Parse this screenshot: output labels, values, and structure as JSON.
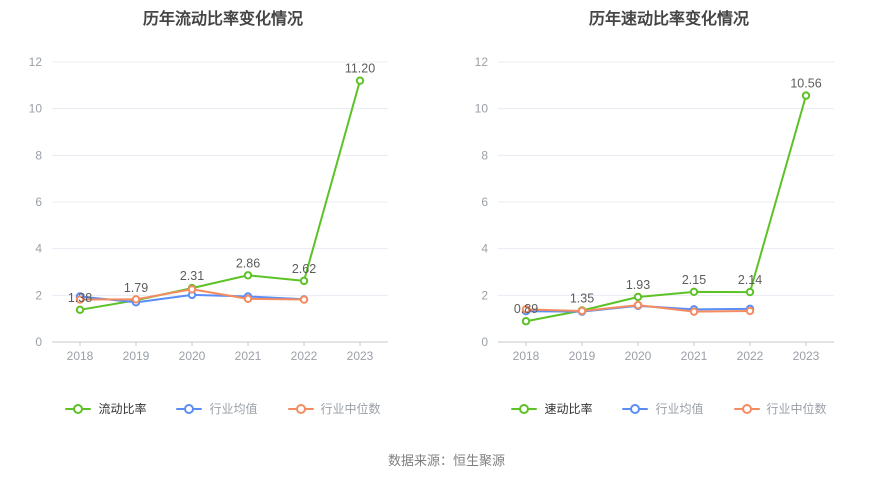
{
  "source_text": "数据来源：恒生聚源",
  "colors": {
    "grid": "#e8ecf2",
    "axis_line": "#c4c8cc",
    "axis_text": "#9aa0a6",
    "value_label": "#5c5c5c",
    "title_text": "#454545",
    "legend_active_text": "#333333",
    "legend_muted_text": "#9aa0a6",
    "background": "#ffffff"
  },
  "chart_data": [
    {
      "type": "line",
      "title": "历年流动比率变化情况",
      "categories": [
        "2018",
        "2019",
        "2020",
        "2021",
        "2022",
        "2023"
      ],
      "ylim": [
        0,
        12
      ],
      "yticks": [
        0,
        2,
        4,
        6,
        8,
        10,
        12
      ],
      "grid": true,
      "legend_position": "bottom",
      "series": [
        {
          "name": "流动比率",
          "color": "#5cc226",
          "values": [
            1.38,
            1.79,
            2.31,
            2.86,
            2.62,
            11.2
          ],
          "point_labels": [
            "1.38",
            "1.79",
            "2.31",
            "2.86",
            "2.62",
            "11.20"
          ]
        },
        {
          "name": "行业均值",
          "color": "#5b8df6",
          "values": [
            1.95,
            1.7,
            2.02,
            1.95,
            1.83,
            null
          ]
        },
        {
          "name": "行业中位数",
          "color": "#f58b60",
          "values": [
            1.82,
            1.83,
            2.26,
            1.85,
            1.82,
            null
          ]
        }
      ]
    },
    {
      "type": "line",
      "title": "历年速动比率变化情况",
      "categories": [
        "2018",
        "2019",
        "2020",
        "2021",
        "2022",
        "2023"
      ],
      "ylim": [
        0,
        12
      ],
      "yticks": [
        0,
        2,
        4,
        6,
        8,
        10,
        12
      ],
      "grid": true,
      "legend_position": "bottom",
      "series": [
        {
          "name": "速动比率",
          "color": "#5cc226",
          "values": [
            0.89,
            1.35,
            1.93,
            2.15,
            2.14,
            10.56
          ],
          "point_labels": [
            "0.89",
            "1.35",
            "1.93",
            "2.15",
            "2.14",
            "10.56"
          ]
        },
        {
          "name": "行业均值",
          "color": "#5b8df6",
          "values": [
            1.32,
            1.3,
            1.55,
            1.4,
            1.42,
            null
          ]
        },
        {
          "name": "行业中位数",
          "color": "#f58b60",
          "values": [
            1.4,
            1.33,
            1.58,
            1.3,
            1.33,
            null
          ]
        }
      ]
    }
  ]
}
